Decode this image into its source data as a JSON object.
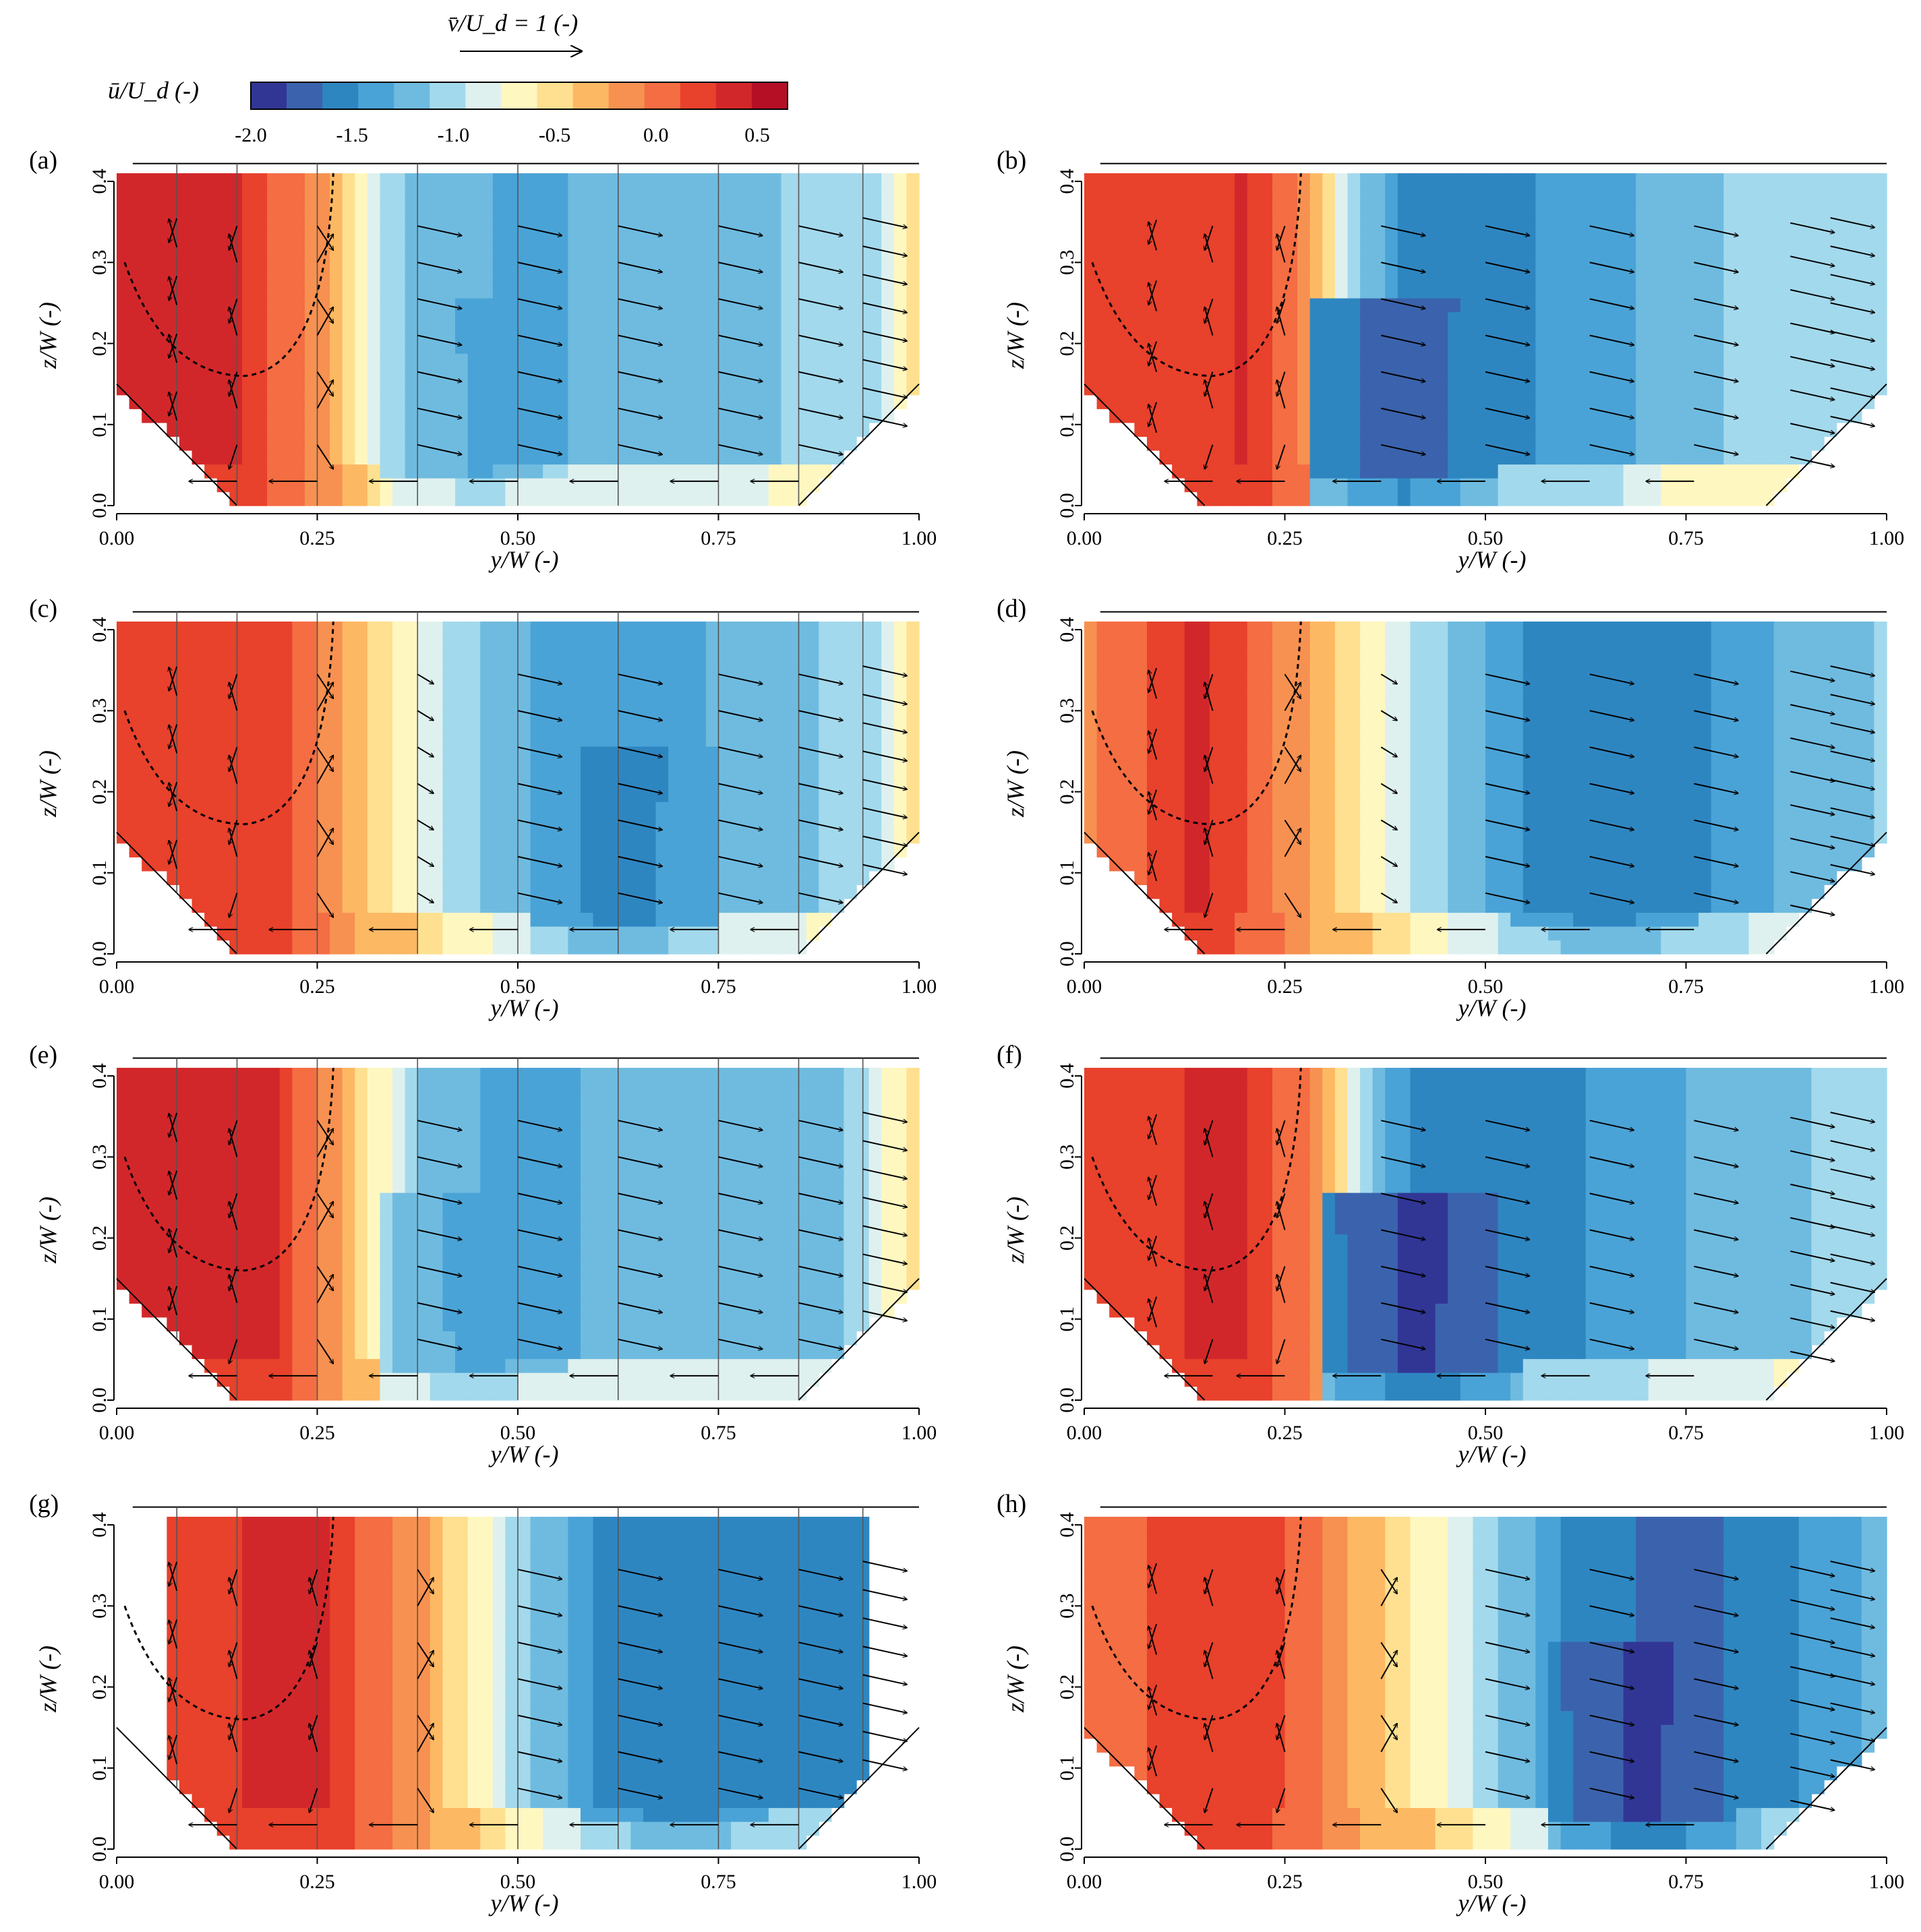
{
  "figure": {
    "vector_key_label": "v̄/U_d = 1 (-)",
    "colorbar_label": "ū/U_d (-)",
    "colorbar_ticks": [
      "-2.0",
      "-1.5",
      "-1.0",
      "-0.5",
      "0.0",
      "0.5"
    ],
    "colorbar_colors": [
      "#313695",
      "#3b63ad",
      "#2e86c1",
      "#4aa3d6",
      "#6fbbe0",
      "#a3d9ec",
      "#dff1ee",
      "#fff7c0",
      "#fee090",
      "#fdb863",
      "#f79151",
      "#f46d43",
      "#e8412c",
      "#d2272a",
      "#b50f26"
    ]
  },
  "chart_data": [
    {
      "panel": "(a)",
      "type": "heatmap",
      "xlabel": "y/W (-)",
      "ylabel": "z/W (-)",
      "xlim": [
        0,
        1
      ],
      "ylim": [
        0,
        0.42
      ],
      "xticks": [
        "0.00",
        "0.25",
        "0.50",
        "0.75",
        "1.00"
      ],
      "yticks": [
        "0.0",
        "0.1",
        "0.2",
        "0.3",
        "0.4"
      ],
      "channel": {
        "left_toe": 0.15,
        "right_toe": 0.85,
        "bank_height": 0.15,
        "top": 0.41
      },
      "profiles_at": [
        0.075,
        0.15,
        0.25,
        0.375,
        0.5,
        0.625,
        0.75,
        0.85,
        0.93
      ],
      "u_profile": [
        {
          "y": 0.0,
          "u": 0.35
        },
        {
          "y": 0.15,
          "u": 0.3
        },
        {
          "y": 0.27,
          "u": -0.2
        },
        {
          "y": 0.35,
          "u": -1.1
        },
        {
          "y": 0.5,
          "u": -1.35
        },
        {
          "y": 0.62,
          "u": -1.25
        },
        {
          "y": 0.8,
          "u": -1.15
        },
        {
          "y": 0.95,
          "u": -1.0
        },
        {
          "y": 1.0,
          "u": -0.5
        }
      ],
      "min_at": 0.45,
      "min_u": -1.35
    },
    {
      "panel": "(b)",
      "type": "heatmap",
      "xlabel": "y/W (-)",
      "ylabel": "z/W (-)",
      "xlim": [
        0,
        1
      ],
      "ylim": [
        0,
        0.42
      ],
      "xticks": [
        "0.00",
        "0.25",
        "0.50",
        "0.75",
        "1.00"
      ],
      "yticks": [
        "0.0",
        "0.1",
        "0.2",
        "0.3",
        "0.4"
      ],
      "channel": {
        "left_toe": 0.15,
        "right_toe": 0.85,
        "bank_height": 0.15,
        "top": 0.41
      },
      "profiles_at": [
        0.09,
        0.16,
        0.25,
        0.37,
        0.5,
        0.63,
        0.76,
        0.88,
        0.93
      ],
      "u_profile": [
        {
          "y": 0.0,
          "u": 0.2
        },
        {
          "y": 0.2,
          "u": 0.3
        },
        {
          "y": 0.27,
          "u": 0.0
        },
        {
          "y": 0.33,
          "u": -1.0
        },
        {
          "y": 0.4,
          "u": -1.5
        },
        {
          "y": 0.67,
          "u": -1.45
        },
        {
          "y": 0.7,
          "u": -1.15
        },
        {
          "y": 1.0,
          "u": -1.05
        }
      ],
      "min_at": 0.4,
      "min_u": -1.8
    },
    {
      "panel": "(c)",
      "type": "heatmap",
      "xlabel": "y/W (-)",
      "ylabel": "z/W (-)",
      "xlim": [
        0,
        1
      ],
      "ylim": [
        0,
        0.42
      ],
      "xticks": [
        "0.00",
        "0.25",
        "0.50",
        "0.75",
        "1.00"
      ],
      "yticks": [
        "0.0",
        "0.1",
        "0.2",
        "0.3",
        "0.4"
      ],
      "channel": {
        "left_toe": 0.15,
        "right_toe": 0.85,
        "bank_height": 0.15,
        "top": 0.41
      },
      "profiles_at": [
        0.075,
        0.15,
        0.25,
        0.375,
        0.5,
        0.625,
        0.75,
        0.85,
        0.93
      ],
      "u_profile": [
        {
          "y": 0.0,
          "u": 0.25
        },
        {
          "y": 0.2,
          "u": 0.25
        },
        {
          "y": 0.3,
          "u": -0.3
        },
        {
          "y": 0.42,
          "u": -1.0
        },
        {
          "y": 0.55,
          "u": -1.4
        },
        {
          "y": 0.8,
          "u": -1.25
        },
        {
          "y": 0.95,
          "u": -1.0
        },
        {
          "y": 1.0,
          "u": -0.5
        }
      ],
      "min_at": 0.63,
      "min_u": -1.6
    },
    {
      "panel": "(d)",
      "type": "heatmap",
      "xlabel": "y/W (-)",
      "ylabel": "z/W (-)",
      "xlim": [
        0,
        1
      ],
      "ylim": [
        0,
        0.42
      ],
      "xticks": [
        "0.00",
        "0.25",
        "0.50",
        "0.75",
        "1.00"
      ],
      "yticks": [
        "0.0",
        "0.1",
        "0.2",
        "0.3",
        "0.4"
      ],
      "channel": {
        "left_toe": 0.15,
        "right_toe": 0.85,
        "bank_height": 0.15,
        "top": 0.41
      },
      "profiles_at": [
        0.09,
        0.16,
        0.25,
        0.37,
        0.5,
        0.63,
        0.76,
        0.88,
        0.93
      ],
      "u_profile": [
        {
          "y": 0.0,
          "u": -0.1
        },
        {
          "y": 0.15,
          "u": 0.35
        },
        {
          "y": 0.25,
          "u": -0.1
        },
        {
          "y": 0.4,
          "u": -0.9
        },
        {
          "y": 0.55,
          "u": -1.5
        },
        {
          "y": 0.75,
          "u": -1.55
        },
        {
          "y": 0.85,
          "u": -1.3
        },
        {
          "y": 1.0,
          "u": -1.1
        }
      ],
      "min_at": 0.65,
      "min_u": -1.6
    },
    {
      "panel": "(e)",
      "type": "heatmap",
      "xlabel": "y/W (-)",
      "ylabel": "z/W (-)",
      "xlim": [
        0,
        1
      ],
      "ylim": [
        0,
        0.42
      ],
      "xticks": [
        "0.00",
        "0.25",
        "0.50",
        "0.75",
        "1.00"
      ],
      "yticks": [
        "0.0",
        "0.1",
        "0.2",
        "0.3",
        "0.4"
      ],
      "channel": {
        "left_toe": 0.15,
        "right_toe": 0.85,
        "bank_height": 0.15,
        "top": 0.41
      },
      "profiles_at": [
        0.075,
        0.15,
        0.25,
        0.375,
        0.5,
        0.625,
        0.75,
        0.85,
        0.93
      ],
      "u_profile": [
        {
          "y": 0.0,
          "u": 0.3
        },
        {
          "y": 0.2,
          "u": 0.3
        },
        {
          "y": 0.3,
          "u": -0.4
        },
        {
          "y": 0.38,
          "u": -1.2
        },
        {
          "y": 0.5,
          "u": -1.35
        },
        {
          "y": 0.7,
          "u": -1.2
        },
        {
          "y": 0.9,
          "u": -1.15
        },
        {
          "y": 1.0,
          "u": -0.5
        }
      ],
      "min_at": 0.45,
      "min_u": -1.4
    },
    {
      "panel": "(f)",
      "type": "heatmap",
      "xlabel": "y/W (-)",
      "ylabel": "z/W (-)",
      "xlim": [
        0,
        1
      ],
      "ylim": [
        0,
        0.42
      ],
      "xticks": [
        "0.00",
        "0.25",
        "0.50",
        "0.75",
        "1.00"
      ],
      "yticks": [
        "0.0",
        "0.1",
        "0.2",
        "0.3",
        "0.4"
      ],
      "channel": {
        "left_toe": 0.15,
        "right_toe": 0.85,
        "bank_height": 0.15,
        "top": 0.41
      },
      "profiles_at": [
        0.09,
        0.16,
        0.25,
        0.37,
        0.5,
        0.63,
        0.76,
        0.88,
        0.93
      ],
      "u_profile": [
        {
          "y": 0.0,
          "u": 0.2
        },
        {
          "y": 0.2,
          "u": 0.35
        },
        {
          "y": 0.3,
          "u": -0.2
        },
        {
          "y": 0.36,
          "u": -1.2
        },
        {
          "y": 0.42,
          "u": -1.6
        },
        {
          "y": 0.6,
          "u": -1.5
        },
        {
          "y": 0.75,
          "u": -1.3
        },
        {
          "y": 0.85,
          "u": -1.15
        },
        {
          "y": 1.0,
          "u": -1.05
        }
      ],
      "min_at": 0.42,
      "min_u": -1.9
    },
    {
      "panel": "(g)",
      "type": "heatmap",
      "xlabel": "y/W (-)",
      "ylabel": "z/W (-)",
      "xlim": [
        0,
        1
      ],
      "ylim": [
        0,
        0.42
      ],
      "xticks": [
        "0.00",
        "0.25",
        "0.50",
        "0.75",
        "1.00"
      ],
      "yticks": [
        "0.0",
        "0.1",
        "0.2",
        "0.3",
        "0.4"
      ],
      "channel": {
        "left_toe": 0.15,
        "right_toe": 0.85,
        "bank_height": 0.15,
        "top": 0.41
      },
      "domain_x": [
        0.07,
        0.94
      ],
      "profiles_at": [
        0.075,
        0.15,
        0.25,
        0.375,
        0.5,
        0.625,
        0.75,
        0.85,
        0.93
      ],
      "u_profile": [
        {
          "y": 0.07,
          "u": 0.25
        },
        {
          "y": 0.25,
          "u": 0.35
        },
        {
          "y": 0.38,
          "u": -0.2
        },
        {
          "y": 0.5,
          "u": -1.0
        },
        {
          "y": 0.6,
          "u": -1.5
        },
        {
          "y": 0.94,
          "u": -1.55
        }
      ],
      "min_at": 0.7,
      "min_u": -1.6
    },
    {
      "panel": "(h)",
      "type": "heatmap",
      "xlabel": "y/W (-)",
      "ylabel": "z/W (-)",
      "xlim": [
        0,
        1
      ],
      "ylim": [
        0,
        0.42
      ],
      "xticks": [
        "0.00",
        "0.25",
        "0.50",
        "0.75",
        "1.00"
      ],
      "yticks": [
        "0.0",
        "0.1",
        "0.2",
        "0.3",
        "0.4"
      ],
      "channel": {
        "left_toe": 0.15,
        "right_toe": 0.85,
        "bank_height": 0.15,
        "top": 0.41
      },
      "profiles_at": [
        0.09,
        0.16,
        0.25,
        0.37,
        0.5,
        0.63,
        0.76,
        0.88,
        0.93
      ],
      "u_profile": [
        {
          "y": 0.0,
          "u": 0.0
        },
        {
          "y": 0.2,
          "u": 0.3
        },
        {
          "y": 0.35,
          "u": -0.3
        },
        {
          "y": 0.5,
          "u": -1.0
        },
        {
          "y": 0.6,
          "u": -1.5
        },
        {
          "y": 0.75,
          "u": -1.75
        },
        {
          "y": 0.88,
          "u": -1.5
        },
        {
          "y": 1.0,
          "u": -1.2
        }
      ],
      "min_at": 0.7,
      "min_u": -1.9
    }
  ]
}
